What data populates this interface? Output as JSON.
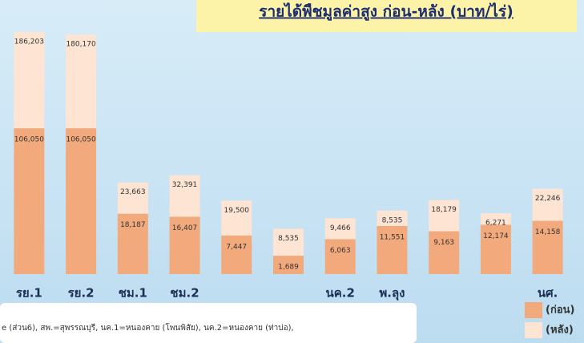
{
  "chart_data": {
    "type": "stacked-bar",
    "title": "รายได้พืชมูลค่าสูง ก่อน-หลัง (บาท/ไร่)",
    "categories": [
      "รย.1",
      "รย.2",
      "ชม.1",
      "ชม.2",
      null,
      null,
      "นค.2",
      "พ.ลุง",
      null,
      null,
      "นศ."
    ],
    "series": [
      {
        "name": "(ก่อน)",
        "color": "#f2aa7c",
        "values": [
          106050,
          106050,
          18187,
          16407,
          7447,
          1689,
          6063,
          11551,
          9163,
          12174,
          14158
        ],
        "value_labels": [
          "106,050",
          "106,050",
          "18,187",
          "16,407",
          "7,447",
          "1,689",
          "6,063",
          "11,551",
          "9,163",
          "12,174",
          "14,158"
        ]
      },
      {
        "name": "(หลัง)",
        "color": "#fde4d3",
        "values": [
          186203,
          180170,
          23663,
          32391,
          19500,
          8535,
          9466,
          8535,
          18179,
          6271,
          22246
        ],
        "value_labels": [
          "186,203",
          "180,170",
          "23,663",
          "32,391",
          "19,500",
          "8,535",
          "9,466",
          "8,535",
          "18,179",
          "6,271",
          "22,246"
        ]
      }
    ],
    "footnote": "e (ส่วน6), สพ.=สุพรรณบุรี, นค.1=หนองคาย (โพนพิสัย), นค.2=หนองคาย (ท่าบ่อ),"
  }
}
